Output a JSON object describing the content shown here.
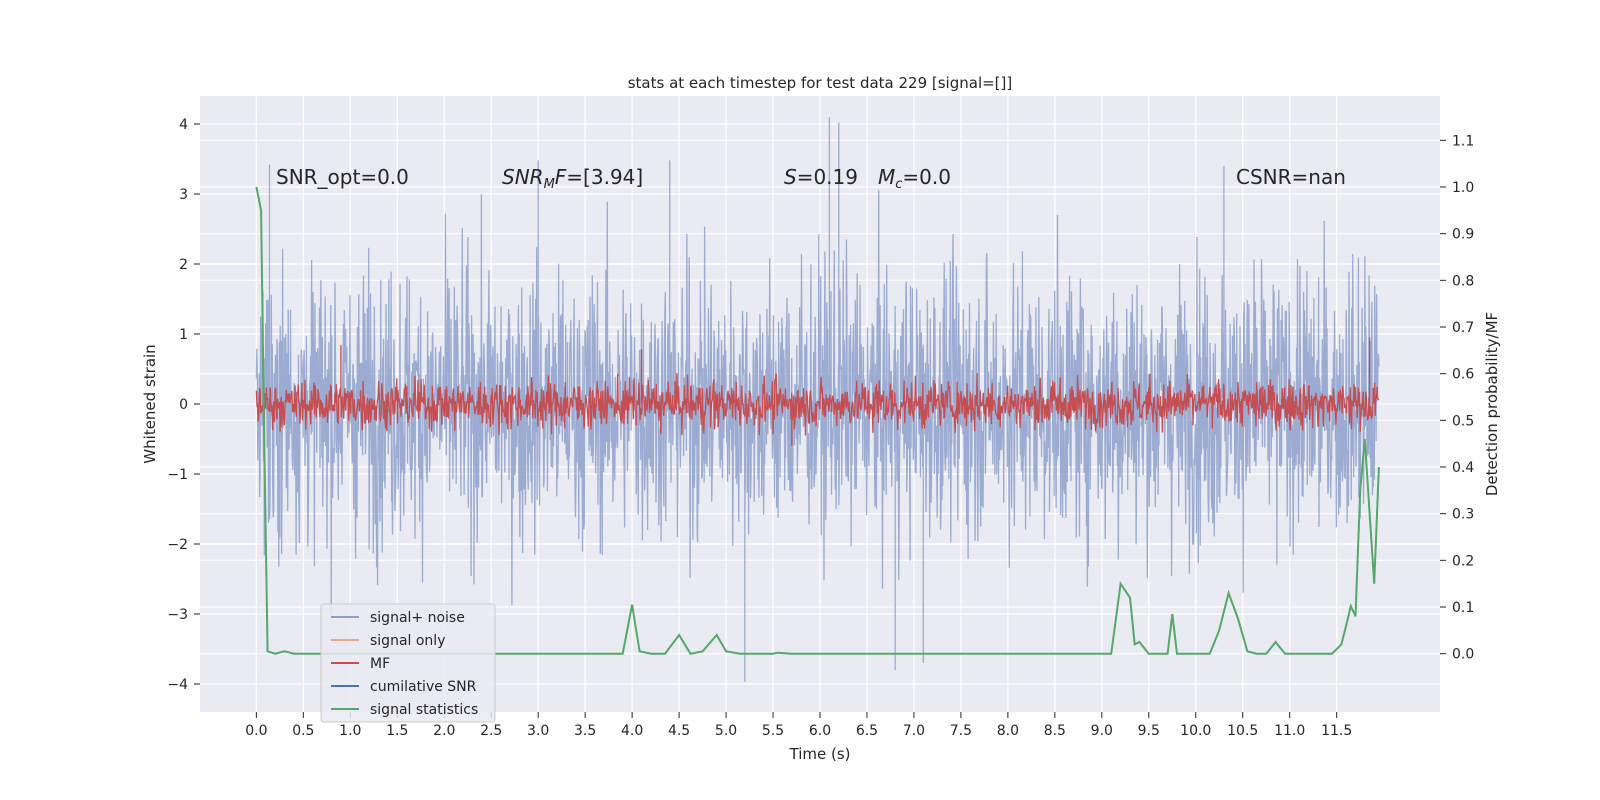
{
  "chart_data": {
    "type": "line",
    "title": "stats at each timestep for test data 229 [signal=[]]",
    "xlabel": "Time (s)",
    "ylabel": "Whitened strain",
    "y2label": "Detection probability/MF",
    "xlim": [
      -0.6,
      12.6
    ],
    "ylim": [
      -4.4,
      4.4
    ],
    "y2lim": [
      -0.125,
      1.195
    ],
    "x_ticks": [
      0.0,
      0.5,
      1.0,
      1.5,
      2.0,
      2.5,
      3.0,
      3.5,
      4.0,
      4.5,
      5.0,
      5.5,
      6.0,
      6.5,
      7.0,
      7.5,
      8.0,
      8.5,
      9.0,
      9.5,
      10.0,
      10.5,
      11.0,
      11.5
    ],
    "x_tick_labels": [
      "0.0",
      "0.5",
      "1.0",
      "1.5",
      "2.0",
      "2.5",
      "3.0",
      "3.5",
      "4.0",
      "4.5",
      "5.0",
      "5.5",
      "6.0",
      "6.5",
      "7.0",
      "7.5",
      "8.0",
      "8.5",
      "9.0",
      "9.5",
      "10.0",
      "10.5",
      "11.0",
      "11.5"
    ],
    "y_ticks": [
      4,
      3,
      2,
      1,
      0,
      -1,
      -2,
      -3,
      -4
    ],
    "y_tick_labels": [
      "4",
      "3",
      "2",
      "1",
      "0",
      "−1",
      "−2",
      "−3",
      "−4"
    ],
    "y2_ticks": [
      1.1,
      1.0,
      0.9,
      0.8,
      0.7,
      0.6,
      0.5,
      0.4,
      0.3,
      0.2,
      0.1,
      0.0
    ],
    "y2_tick_labels": [
      "1.1",
      "1.0",
      "0.9",
      "0.8",
      "0.7",
      "0.6",
      "0.5",
      "0.4",
      "0.3",
      "0.2",
      "0.1",
      "0.0"
    ],
    "grid": true,
    "legend_position": "lower-left",
    "legend": [
      {
        "label": "signal+ noise",
        "color": "#8da0cb"
      },
      {
        "label": "signal only",
        "color": "#e8a98a"
      },
      {
        "label": "MF",
        "color": "#c44e52"
      },
      {
        "label": "cumilative SNR",
        "color": "#4c72b0"
      },
      {
        "label": "signal statistics",
        "color": "#55a868"
      }
    ],
    "annotations": {
      "snr_opt": "SNR_opt=0.0",
      "snr_mf_sym": "SNR",
      "snr_mf_sub": "M",
      "snr_mf_sym2": "F",
      "snr_mf_val": "=[3.94]",
      "s_sym": "S",
      "s_val": "=0.19",
      "mc_sym": "M",
      "mc_sub": "c",
      "mc_val": "=0.0",
      "csnr": "CSNR=nan"
    },
    "series": [
      {
        "name": "signal+ noise",
        "color": "#8da0cb",
        "description_range": [
          -3.97,
          4.1
        ],
        "peaks": [
          [
            0.14,
            3.42
          ],
          [
            3.0,
            3.48
          ],
          [
            4.4,
            3.48
          ],
          [
            6.1,
            4.1
          ],
          [
            6.2,
            4.02
          ],
          [
            10.3,
            3.4
          ],
          [
            5.2,
            -3.97
          ],
          [
            6.8,
            -3.8
          ],
          [
            7.1,
            -3.7
          ]
        ]
      },
      {
        "name": "signal only",
        "color": "#e8a98a",
        "values": []
      },
      {
        "name": "MF",
        "color": "#c44e52",
        "band": [
          -0.45,
          0.45
        ],
        "peaks": [
          [
            11.85,
            0.95
          ],
          [
            4.1,
            0.78
          ],
          [
            5.7,
            -0.6
          ],
          [
            0.9,
            0.84
          ]
        ]
      },
      {
        "name": "cumilative SNR",
        "color": "#4c72b0",
        "values": []
      },
      {
        "name": "signal statistics",
        "color": "#55a868",
        "axis": "right",
        "x": [
          0.0,
          0.05,
          0.08,
          0.12,
          0.2,
          0.3,
          0.4,
          1.0,
          2.0,
          3.0,
          3.9,
          4.0,
          4.08,
          4.2,
          4.35,
          4.5,
          4.62,
          4.75,
          4.9,
          5.0,
          5.15,
          5.3,
          5.5,
          5.55,
          5.7,
          6.0,
          7.0,
          8.0,
          9.1,
          9.2,
          9.3,
          9.35,
          9.4,
          9.5,
          9.7,
          9.75,
          9.8,
          10.15,
          10.25,
          10.35,
          10.45,
          10.55,
          10.65,
          10.75,
          10.85,
          10.95,
          11.05,
          11.45,
          11.55,
          11.6,
          11.65,
          11.7,
          11.75,
          11.8,
          11.9,
          11.95
        ],
        "y": [
          1.0,
          0.95,
          0.5,
          0.005,
          0.0,
          0.005,
          0.0,
          0.0,
          0.0,
          0.0,
          0.0,
          0.105,
          0.005,
          0.0,
          0.0,
          0.04,
          0.0,
          0.005,
          0.04,
          0.005,
          0.0,
          0.0,
          0.0,
          0.002,
          0.0,
          0.0,
          0.0,
          0.0,
          0.0,
          0.15,
          0.12,
          0.02,
          0.025,
          0.0,
          0.0,
          0.085,
          0.0,
          0.0,
          0.05,
          0.13,
          0.075,
          0.005,
          0.0,
          0.0,
          0.025,
          0.0,
          0.0,
          0.0,
          0.02,
          0.06,
          0.102,
          0.08,
          0.35,
          0.46,
          0.15,
          0.4
        ]
      }
    ]
  }
}
